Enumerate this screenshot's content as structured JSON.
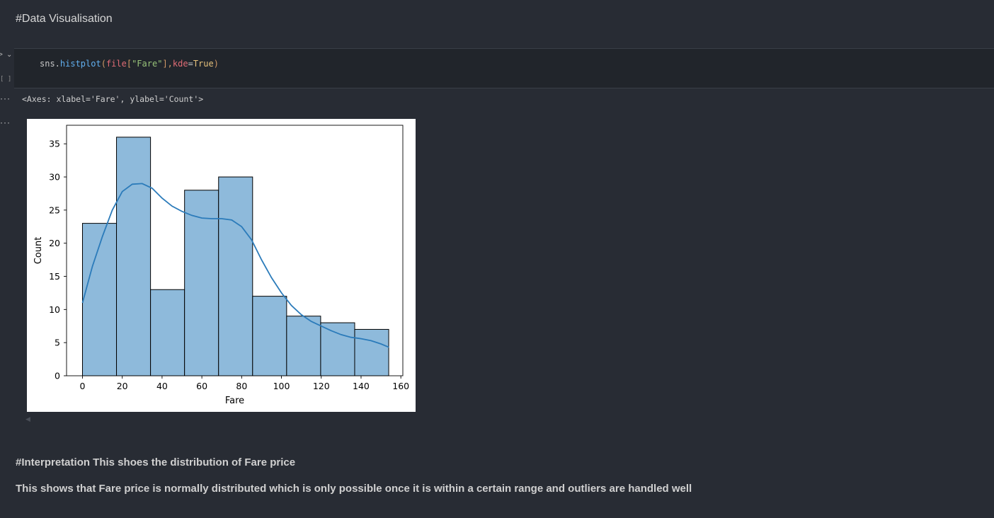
{
  "markdown_heading": "#Data Visualisation",
  "code_cell": {
    "run_icon": "run-arrow-icon",
    "collapse_icon": "chevron-down-icon",
    "execution_count": "[ ]",
    "tokens": {
      "obj": "sns.",
      "fn": "histplot",
      "paren_open": "(",
      "var": "file",
      "bracket_open": "[",
      "str": "\"Fare\"",
      "bracket_close": "],",
      "kw_name": "kde",
      "eq": "=",
      "kw_val": "True",
      "paren_close": ")"
    }
  },
  "output": {
    "text": "<Axes: xlabel='Fare', ylabel='Count'>",
    "ellipsis": "···"
  },
  "chart_data": {
    "type": "bar",
    "subtype": "histogram-with-kde",
    "xlabel": "Fare",
    "ylabel": "Count",
    "bin_edges": [
      0,
      17.1,
      34.2,
      51.3,
      68.4,
      85.5,
      102.6,
      119.7,
      136.8,
      153.9
    ],
    "values": [
      23,
      36,
      13,
      28,
      30,
      12,
      9,
      8,
      7
    ],
    "xlim": [
      -8,
      161
    ],
    "ylim": [
      0,
      37.8
    ],
    "xticks": [
      0,
      20,
      40,
      60,
      80,
      100,
      120,
      140,
      160
    ],
    "yticks": [
      0,
      5,
      10,
      15,
      20,
      25,
      30,
      35
    ],
    "kde": {
      "x": [
        0,
        5,
        10,
        15,
        20,
        25,
        30,
        35,
        40,
        45,
        50,
        55,
        60,
        65,
        70,
        75,
        80,
        85,
        90,
        95,
        100,
        105,
        110,
        115,
        120,
        125,
        130,
        135,
        140,
        145,
        150,
        154
      ],
      "y": [
        11,
        16.5,
        21,
        25,
        27.8,
        28.9,
        29,
        28.3,
        26.8,
        25.6,
        24.8,
        24.2,
        23.8,
        23.7,
        23.7,
        23.5,
        22.5,
        20.5,
        17.5,
        14.8,
        12.5,
        10.6,
        9.2,
        8.2,
        7.5,
        6.8,
        6.2,
        5.8,
        5.6,
        5.3,
        4.8,
        4.3
      ]
    },
    "colors": {
      "bar_fill": "#8ebadb",
      "bar_edge": "#000000",
      "kde_line": "#2b7bba"
    }
  },
  "interpretation": {
    "title": "#Interpretation This shoes the distribution of Fare price",
    "body": "This shows that Fare price is normally distributed which is only possible once it is within a certain range and outliers are handled well"
  }
}
